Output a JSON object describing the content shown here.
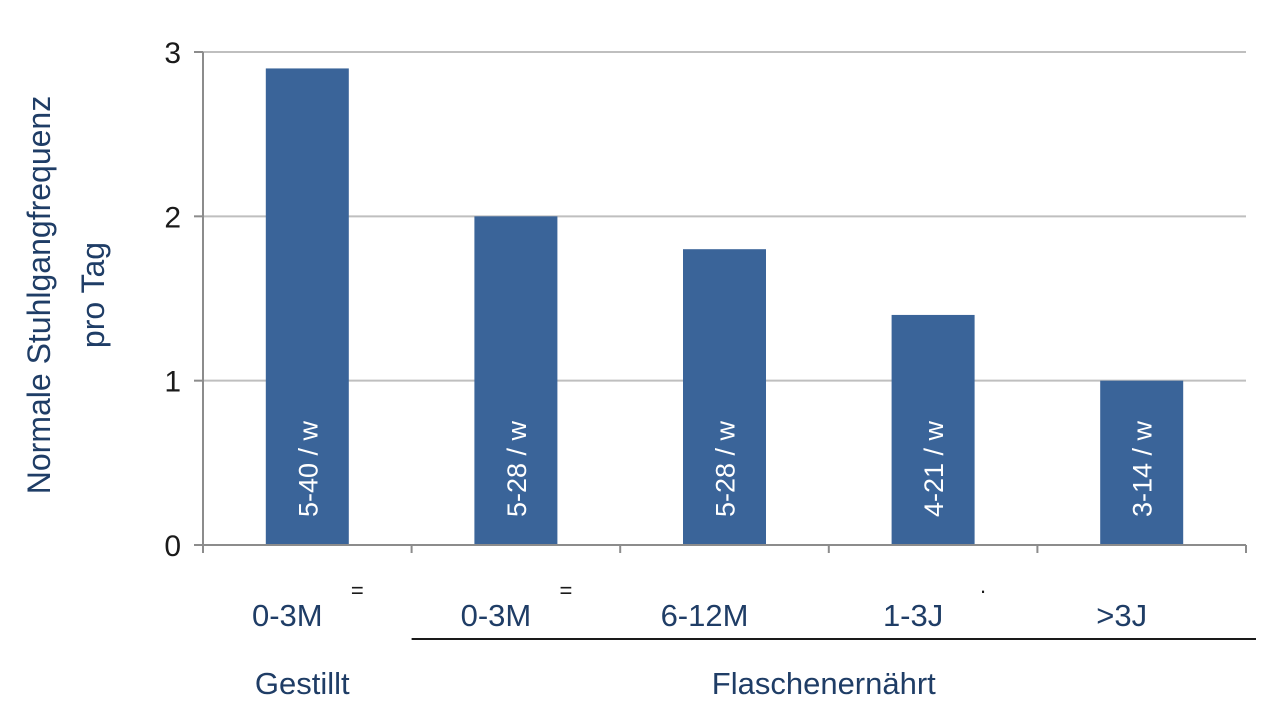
{
  "chart_data": {
    "type": "bar",
    "categories": [
      "0-3M",
      "0-3M",
      "6-12M",
      "1-3J",
      ">3J"
    ],
    "values": [
      2.9,
      2.0,
      1.8,
      1.4,
      1.0
    ],
    "bar_labels": [
      "5-40 / w",
      "5-28 / w",
      "5-28 / w",
      "4-21 / w",
      "3-14 / w"
    ],
    "groups": [
      {
        "label": "Gestillt",
        "categories": [
          0
        ]
      },
      {
        "label": "Flaschenernährt",
        "categories": [
          1,
          2,
          3,
          4
        ]
      }
    ],
    "category_markers": [
      "=",
      "=",
      "",
      "·",
      ""
    ],
    "ylabel_lines": [
      "Normale Stuhlgangfrequenz",
      "pro Tag"
    ],
    "ylim": [
      0,
      3
    ],
    "yticks": [
      0,
      1,
      2,
      3
    ],
    "grid": true,
    "colors": {
      "bar": "#3a6499",
      "grid": "#bfbfbf",
      "axis": "#8c8c8c",
      "text_blue": "#1f3d66"
    }
  }
}
